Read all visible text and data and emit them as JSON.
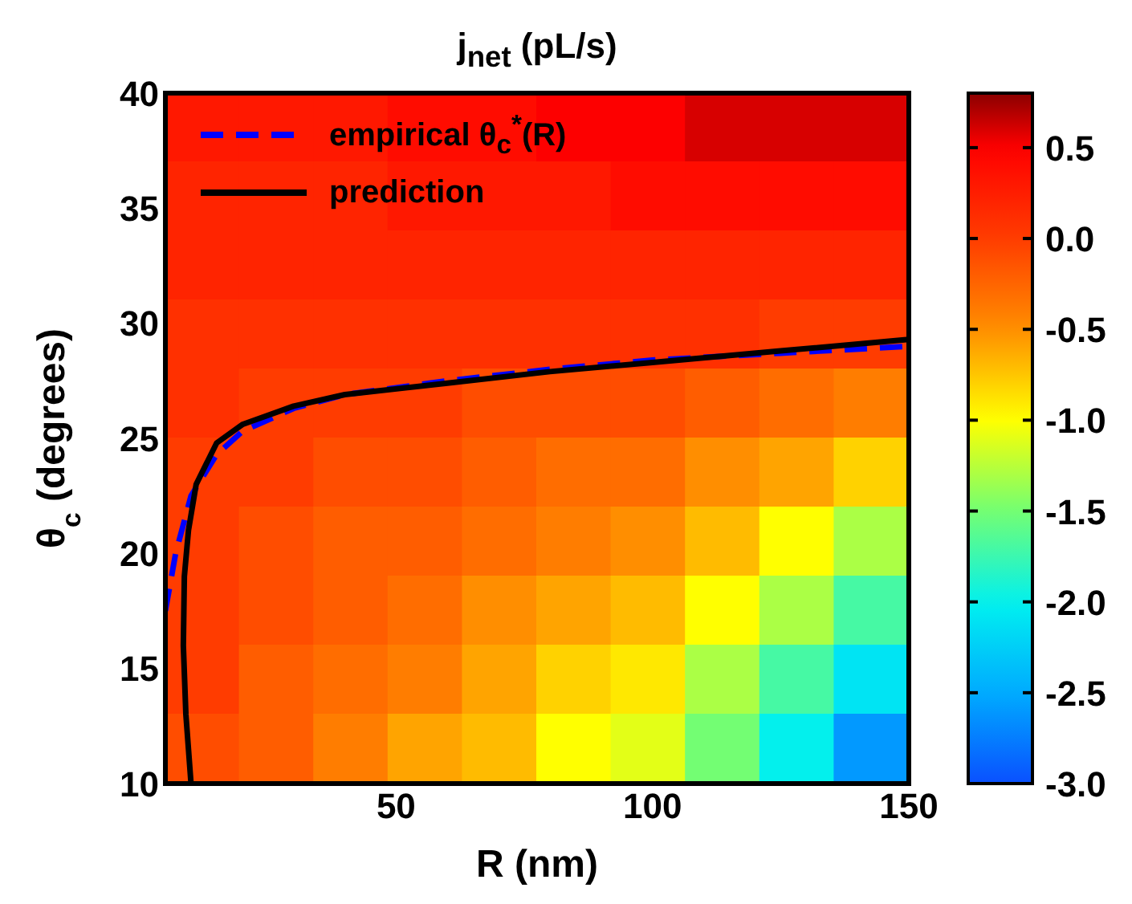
{
  "chart_data": {
    "type": "heatmap",
    "title": "j$_{net}$ (pL/s)",
    "xlabel": "R (nm)",
    "ylabel": "θ$_{c}$ (degrees)",
    "xlim": [
      5,
      150
    ],
    "xticks": [
      50,
      100,
      150
    ],
    "ylim": [
      10,
      40
    ],
    "yticks": [
      10,
      15,
      20,
      25,
      30,
      35,
      40
    ],
    "clim": [
      -3,
      0.8
    ],
    "cticks": [
      {
        "value": -3,
        "label": "-3.0"
      },
      -2.5,
      {
        "value": -2,
        "label": "-2.0"
      },
      -1.5,
      {
        "value": -1,
        "label": "-1.0"
      },
      -0.5,
      {
        "value": 0,
        "label": "0.0"
      },
      0.5
    ],
    "cells": [
      [
        0.3,
        0.3,
        0.3,
        0.4,
        0.4,
        0.5,
        0.5,
        0.6,
        0.6,
        0.6
      ],
      [
        0.2,
        0.2,
        0.2,
        0.3,
        0.3,
        0.3,
        0.4,
        0.4,
        0.4,
        0.4
      ],
      [
        0.2,
        0.2,
        0.2,
        0.2,
        0.2,
        0.2,
        0.2,
        0.2,
        0.2,
        0.2
      ],
      [
        0.1,
        0.1,
        0.1,
        0.1,
        0.1,
        0.1,
        0.1,
        0.1,
        0.0,
        0.0
      ],
      [
        0.1,
        0.0,
        0.0,
        0.0,
        -0.1,
        -0.1,
        -0.1,
        -0.2,
        -0.3,
        -0.4
      ],
      [
        0.0,
        0.0,
        -0.1,
        -0.1,
        -0.2,
        -0.3,
        -0.3,
        -0.5,
        -0.6,
        -0.8
      ],
      [
        0.0,
        -0.1,
        -0.2,
        -0.2,
        -0.3,
        -0.4,
        -0.5,
        -0.7,
        -1.0,
        -1.3
      ],
      [
        0.0,
        -0.1,
        -0.2,
        -0.3,
        -0.5,
        -0.6,
        -0.7,
        -1.0,
        -1.3,
        -1.7
      ],
      [
        0.0,
        -0.2,
        -0.3,
        -0.4,
        -0.6,
        -0.8,
        -0.9,
        -1.3,
        -1.7,
        -2.1
      ],
      [
        -0.1,
        -0.2,
        -0.4,
        -0.6,
        -0.7,
        -1.0,
        -1.1,
        -1.5,
        -2.0,
        -2.6
      ]
    ],
    "legend": "top left",
    "series": [
      {
        "name": "empirical θ$_{c}$$^{*}$(R)",
        "type": "line",
        "color": "#0000ff",
        "line_style": "dashed",
        "x": [
          5,
          7,
          10,
          15,
          20,
          30,
          40,
          60,
          80,
          100,
          125,
          150
        ],
        "values": [
          17.5,
          20,
          22.5,
          24.3,
          25.3,
          26.3,
          26.9,
          27.5,
          28,
          28.4,
          28.7,
          29
        ]
      },
      {
        "name": "prediction",
        "type": "line",
        "color": "#000000",
        "line_style": "solid",
        "x": [
          10,
          9,
          8.5,
          8.7,
          9.5,
          11,
          15,
          20,
          30,
          40,
          60,
          80,
          100,
          125,
          150
        ],
        "values": [
          10,
          13,
          16,
          19,
          21,
          23,
          24.8,
          25.6,
          26.4,
          26.9,
          27.4,
          27.9,
          28.3,
          28.8,
          29.3
        ]
      }
    ]
  }
}
